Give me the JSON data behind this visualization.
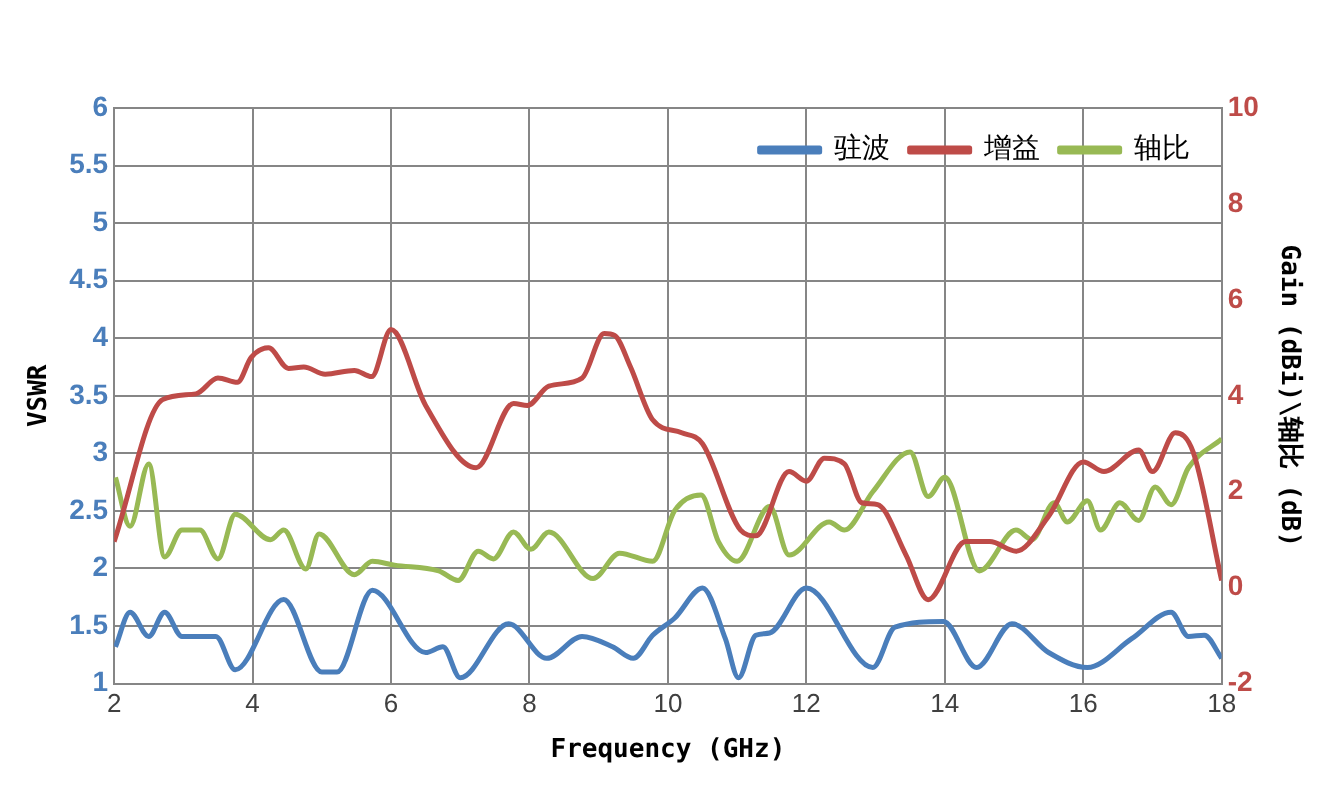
{
  "chart_data": {
    "type": "line",
    "xlabel": "Frequency (GHz)",
    "ylabel": "VSWR",
    "y2label": "Gain (dBi)\\轴比 (dB)",
    "xlim": [
      2,
      18
    ],
    "xticks": [
      2,
      4,
      6,
      8,
      10,
      12,
      14,
      16,
      18
    ],
    "ylim": [
      1,
      6
    ],
    "yticks": [
      1,
      1.5,
      2,
      2.5,
      3,
      3.5,
      4,
      4.5,
      5,
      5.5,
      6
    ],
    "y2lim": [
      -2,
      10
    ],
    "y2ticks": [
      -2,
      0,
      2,
      4,
      6,
      8,
      10
    ],
    "grid": true,
    "legend": "top right",
    "marker": "none",
    "line_style": "solid",
    "series": [
      {
        "name": "驻波",
        "color": "#4a7ebb",
        "x": [
          2.02,
          2.23,
          2.5,
          2.73,
          2.98,
          3.47,
          3.75,
          4.45,
          5.0,
          5.22,
          5.73,
          6.5,
          6.75,
          7.0,
          7.7,
          8.25,
          8.76,
          9.2,
          9.5,
          9.78,
          10.1,
          10.5,
          10.83,
          11.02,
          11.27,
          11.47,
          12.0,
          12.96,
          13.28,
          13.98,
          14.46,
          14.97,
          15.5,
          16.06,
          16.7,
          17.27,
          17.52,
          17.75,
          18.0
        ],
        "values": [
          1.32,
          1.62,
          1.41,
          1.62,
          1.41,
          1.41,
          1.12,
          1.73,
          1.1,
          1.1,
          1.81,
          1.27,
          1.32,
          1.05,
          1.52,
          1.22,
          1.41,
          1.32,
          1.22,
          1.42,
          1.57,
          1.83,
          1.39,
          1.05,
          1.42,
          1.44,
          1.83,
          1.14,
          1.49,
          1.54,
          1.14,
          1.52,
          1.27,
          1.14,
          1.39,
          1.62,
          1.41,
          1.42,
          1.22
        ]
      },
      {
        "name": "增益",
        "color": "#be4b48",
        "axis": "y2",
        "x": [
          2.0,
          2.7,
          3.18,
          3.5,
          3.78,
          3.98,
          4.23,
          4.52,
          4.74,
          5.05,
          5.47,
          5.72,
          6.0,
          6.5,
          7.23,
          7.77,
          7.97,
          8.28,
          8.76,
          9.08,
          9.23,
          9.46,
          9.78,
          10.2,
          10.5,
          11.05,
          11.27,
          11.75,
          12.0,
          12.26,
          12.55,
          12.8,
          13.03,
          13.44,
          13.76,
          14.3,
          14.65,
          15.03,
          15.5,
          16.0,
          16.3,
          16.8,
          17.0,
          17.33,
          17.59,
          18.0
        ],
        "values": [
          0.96,
          3.92,
          4.04,
          4.37,
          4.28,
          4.8,
          5.0,
          4.57,
          4.6,
          4.45,
          4.53,
          4.4,
          5.38,
          3.8,
          2.5,
          3.84,
          3.8,
          4.2,
          4.37,
          5.3,
          5.26,
          4.6,
          3.5,
          3.23,
          3.0,
          1.2,
          1.08,
          2.42,
          2.22,
          2.7,
          2.58,
          1.77,
          1.73,
          0.68,
          -0.25,
          0.96,
          0.96,
          0.76,
          1.49,
          2.62,
          2.42,
          2.87,
          2.42,
          3.23,
          2.82,
          0.15
        ]
      },
      {
        "name": "轴比",
        "color": "#98b954",
        "axis": "y2",
        "x": [
          2.02,
          2.23,
          2.5,
          2.73,
          2.98,
          3.24,
          3.5,
          3.75,
          4.26,
          4.45,
          4.77,
          4.96,
          5.47,
          5.73,
          6.05,
          6.69,
          6.97,
          7.26,
          7.48,
          7.77,
          8.02,
          8.28,
          8.92,
          9.3,
          9.78,
          10.1,
          10.48,
          10.73,
          11.0,
          11.47,
          11.75,
          12.33,
          12.55,
          12.96,
          13.5,
          13.76,
          14.0,
          14.5,
          15.03,
          15.26,
          15.58,
          15.77,
          16.06,
          16.25,
          16.53,
          16.8,
          17.04,
          17.27,
          17.52,
          18.0
        ],
        "values": [
          2.3,
          1.28,
          2.58,
          0.64,
          1.2,
          1.2,
          0.6,
          1.53,
          1.0,
          1.2,
          0.39,
          1.12,
          0.27,
          0.55,
          0.47,
          0.35,
          0.15,
          0.76,
          0.6,
          1.16,
          0.8,
          1.16,
          0.19,
          0.72,
          0.55,
          1.61,
          1.93,
          0.96,
          0.55,
          1.69,
          0.68,
          1.37,
          1.2,
          2.0,
          2.83,
          1.9,
          2.3,
          0.35,
          1.2,
          1.0,
          1.77,
          1.37,
          1.81,
          1.2,
          1.77,
          1.4,
          2.1,
          1.73,
          2.5,
          3.1
        ]
      }
    ]
  }
}
